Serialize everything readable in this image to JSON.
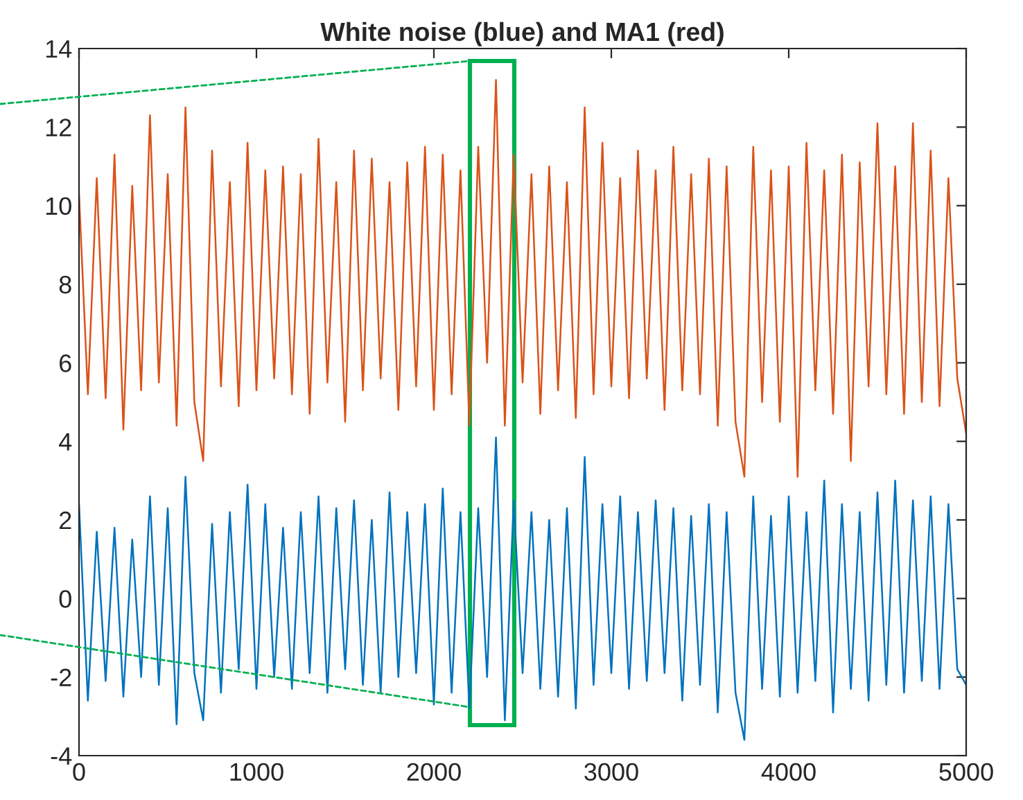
{
  "chart_data": {
    "type": "line",
    "title": "White noise (blue) and MA1 (red)",
    "x": [
      0,
      50,
      100,
      150,
      200,
      250,
      300,
      350,
      400,
      450,
      500,
      550,
      600,
      650,
      700,
      750,
      800,
      850,
      900,
      950,
      1000,
      1050,
      1100,
      1150,
      1200,
      1250,
      1300,
      1350,
      1400,
      1450,
      1500,
      1550,
      1600,
      1650,
      1700,
      1750,
      1800,
      1850,
      1900,
      1950,
      2000,
      2050,
      2100,
      2150,
      2200,
      2250,
      2300,
      2350,
      2400,
      2450,
      2500,
      2550,
      2600,
      2650,
      2700,
      2750,
      2800,
      2850,
      2900,
      2950,
      3000,
      3050,
      3100,
      3150,
      3200,
      3250,
      3300,
      3350,
      3400,
      3450,
      3500,
      3550,
      3600,
      3650,
      3700,
      3750,
      3800,
      3850,
      3900,
      3950,
      4000,
      4050,
      4100,
      4150,
      4200,
      4250,
      4300,
      4350,
      4400,
      4450,
      4500,
      4550,
      4600,
      4650,
      4700,
      4750,
      4800,
      4850,
      4900,
      4950,
      5000
    ],
    "series": [
      {
        "color": "#0072bd",
        "values": [
          2.4,
          -2.6,
          1.7,
          -2.1,
          1.8,
          -2.5,
          1.5,
          -2.0,
          2.6,
          -2.2,
          2.3,
          -3.2,
          3.1,
          -1.9,
          -3.1,
          1.9,
          -2.4,
          2.2,
          -1.8,
          2.9,
          -2.3,
          2.4,
          -2.0,
          1.8,
          -2.3,
          2.2,
          -1.9,
          2.6,
          -2.4,
          2.3,
          -1.8,
          2.5,
          -2.2,
          2.0,
          -2.4,
          2.7,
          -2.0,
          2.2,
          -1.9,
          2.4,
          -2.7,
          2.8,
          -2.4,
          2.2,
          -2.8,
          2.3,
          -2.0,
          4.1,
          -3.1,
          2.5,
          -1.9,
          2.2,
          -2.3,
          2.0,
          -2.5,
          2.3,
          -2.8,
          3.6,
          -2.2,
          2.4,
          -1.9,
          2.6,
          -2.3,
          2.2,
          -2.1,
          2.5,
          -1.9,
          2.3,
          -2.6,
          2.1,
          -2.2,
          2.4,
          -2.9,
          2.2,
          -2.4,
          -3.6,
          2.6,
          -2.3,
          2.1,
          -2.5,
          2.6,
          -2.4,
          2.2,
          -2.1,
          3.0,
          -2.9,
          2.4,
          -2.3,
          2.2,
          -2.6,
          2.7,
          -2.2,
          3.0,
          -2.4,
          2.5,
          -2.1,
          2.6,
          -2.3,
          2.4,
          -1.8,
          -2.2
        ]
      },
      {
        "color": "#d95319",
        "values": [
          10.3,
          5.2,
          10.7,
          5.1,
          11.3,
          4.3,
          10.5,
          5.3,
          12.3,
          5.5,
          10.8,
          4.4,
          12.5,
          5.0,
          3.5,
          11.4,
          5.4,
          10.6,
          4.9,
          11.6,
          5.3,
          10.9,
          5.6,
          11.0,
          5.2,
          10.8,
          4.7,
          11.7,
          5.5,
          10.6,
          4.5,
          11.4,
          5.3,
          11.2,
          5.6,
          10.6,
          4.8,
          11.1,
          5.4,
          11.5,
          4.8,
          11.3,
          5.2,
          10.9,
          4.4,
          11.5,
          6.0,
          13.2,
          4.4,
          11.3,
          5.5,
          10.8,
          4.7,
          11.0,
          5.3,
          10.6,
          4.6,
          12.5,
          5.2,
          11.6,
          5.4,
          10.7,
          5.1,
          11.4,
          5.6,
          10.9,
          4.8,
          11.5,
          5.3,
          10.8,
          5.2,
          11.2,
          4.4,
          11.0,
          4.5,
          3.1,
          11.5,
          5.0,
          10.9,
          4.5,
          11.0,
          3.1,
          11.6,
          5.3,
          10.9,
          4.7,
          11.3,
          3.5,
          11.1,
          5.4,
          12.1,
          5.2,
          11.0,
          4.7,
          12.1,
          5.0,
          11.4,
          4.9,
          10.7,
          5.6,
          4.2
        ]
      }
    ],
    "xlim": [
      0,
      5000
    ],
    "xticks": [
      0,
      1000,
      2000,
      3000,
      4000,
      5000
    ],
    "ylim": [
      -4,
      14
    ],
    "yticks": [
      -4,
      -2,
      0,
      2,
      4,
      6,
      8,
      10,
      12,
      14
    ],
    "grid": false,
    "legend": false,
    "line_style": "solid",
    "marker": "none"
  }
}
